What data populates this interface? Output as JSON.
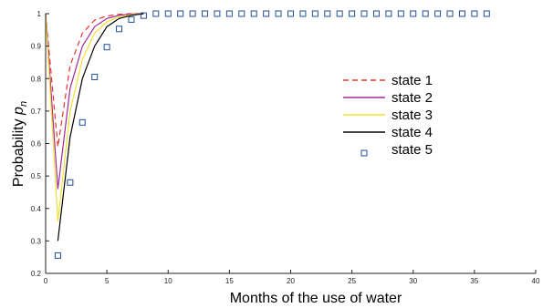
{
  "chart_data": {
    "type": "line",
    "xlabel": "Months of the use of water",
    "ylabel": "Probability",
    "ylabel_symbol": "p",
    "ylabel_subscript": "n",
    "xlim": [
      0,
      40
    ],
    "ylim": [
      0.2,
      1
    ],
    "xticks": [
      0,
      5,
      10,
      15,
      20,
      25,
      30,
      35,
      40
    ],
    "yticks": [
      0.2,
      0.3,
      0.4,
      0.5,
      0.6,
      0.7,
      0.8,
      0.9,
      1
    ],
    "grid": false,
    "legend_position": "right",
    "series": [
      {
        "name": "state 1",
        "color": "#e8322d",
        "style": "dashed",
        "x": [
          0,
          1,
          2,
          3,
          4,
          5,
          6,
          7,
          8
        ],
        "y": [
          1.0,
          0.59,
          0.84,
          0.94,
          0.98,
          0.993,
          0.998,
          1.0,
          1.0
        ]
      },
      {
        "name": "state 2",
        "color": "#a0289a",
        "style": "solid",
        "x": [
          0,
          1,
          2,
          3,
          4,
          5,
          6,
          7,
          8
        ],
        "y": [
          1.0,
          0.46,
          0.77,
          0.9,
          0.96,
          0.985,
          0.995,
          0.999,
          1.0
        ]
      },
      {
        "name": "state 3",
        "color": "#f0e030",
        "style": "solid",
        "x": [
          0,
          1,
          2,
          3,
          4,
          5,
          6,
          7,
          8
        ],
        "y": [
          1.0,
          0.36,
          0.7,
          0.86,
          0.94,
          0.975,
          0.99,
          0.997,
          1.0
        ]
      },
      {
        "name": "state 4",
        "color": "#000000",
        "style": "solid",
        "x": [
          1,
          2,
          3,
          4,
          5,
          6,
          7,
          8
        ],
        "y": [
          0.3,
          0.62,
          0.8,
          0.9,
          0.96,
          0.985,
          0.995,
          1.0
        ]
      },
      {
        "name": "state 5",
        "color": "#1f4e9a",
        "style": "square-markers",
        "x": [
          1,
          2,
          3,
          4,
          5,
          6,
          7,
          8,
          9,
          10,
          11,
          12,
          13,
          14,
          15,
          16,
          17,
          18,
          19,
          20,
          21,
          22,
          23,
          24,
          25,
          26,
          27,
          28,
          29,
          30,
          31,
          32,
          33,
          34,
          35,
          36
        ],
        "y": [
          0.255,
          0.48,
          0.665,
          0.805,
          0.897,
          0.953,
          0.982,
          0.994,
          1,
          1,
          1,
          1,
          1,
          1,
          1,
          1,
          1,
          1,
          1,
          1,
          1,
          1,
          1,
          1,
          1,
          1,
          1,
          1,
          1,
          1,
          1,
          1,
          1,
          1,
          1,
          1
        ]
      }
    ]
  }
}
